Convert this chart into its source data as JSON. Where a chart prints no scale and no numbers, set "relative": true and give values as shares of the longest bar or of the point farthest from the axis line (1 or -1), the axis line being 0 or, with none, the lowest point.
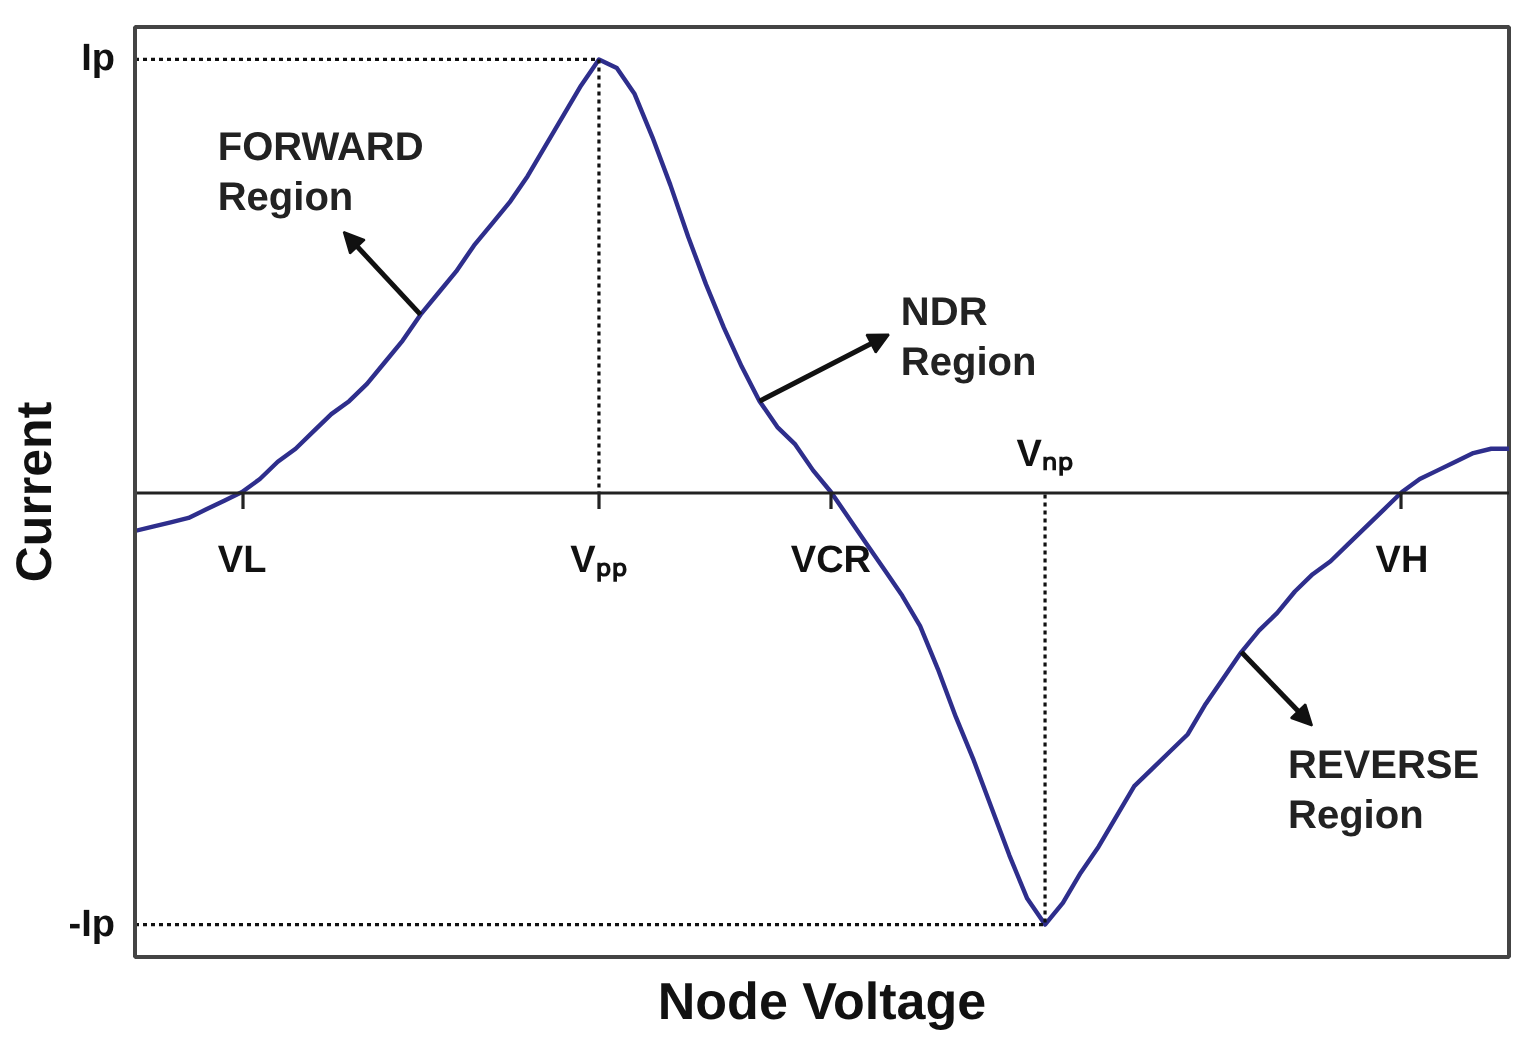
{
  "chart_data": {
    "type": "line",
    "relative": true,
    "xlabel": "Node Voltage",
    "ylabel": "Current",
    "categories": [
      null,
      null,
      null,
      null,
      null,
      null,
      "VL",
      null,
      null,
      null,
      null,
      null,
      null,
      null,
      null,
      null,
      null,
      null,
      null,
      null,
      null,
      null,
      null,
      null,
      null,
      null,
      "Vₚₚ",
      null,
      null,
      null,
      null,
      null,
      null,
      null,
      null,
      null,
      null,
      null,
      null,
      "VCR",
      null,
      null,
      null,
      null,
      null,
      null,
      null,
      null,
      null,
      null,
      null,
      "Vₙₚ",
      null,
      null,
      null,
      null,
      null,
      null,
      null,
      null,
      null,
      null,
      null,
      null,
      null,
      null,
      null,
      null,
      null,
      null,
      null,
      "VH",
      null,
      null,
      null,
      null,
      null,
      null
    ],
    "series": [
      {
        "color": "#2e2e8c",
        "values": [
          -0.09,
          -0.08,
          -0.07,
          -0.06,
          -0.04,
          -0.02,
          0,
          0.03,
          0.07,
          0.1,
          0.14,
          0.18,
          0.21,
          0.25,
          0.3,
          0.35,
          0.41,
          0.46,
          0.51,
          0.57,
          0.62,
          0.67,
          0.73,
          0.8,
          0.87,
          0.94,
          1,
          0.98,
          0.92,
          0.82,
          0.71,
          0.59,
          0.48,
          0.38,
          0.29,
          0.21,
          0.15,
          0.11,
          0.05,
          0,
          -0.06,
          -0.12,
          -0.18,
          -0.24,
          -0.31,
          -0.41,
          -0.52,
          -0.62,
          -0.73,
          -0.84,
          -0.94,
          -1,
          -0.95,
          -0.88,
          -0.82,
          -0.75,
          -0.68,
          -0.64,
          -0.6,
          -0.56,
          -0.49,
          -0.43,
          -0.37,
          -0.32,
          -0.28,
          -0.23,
          -0.19,
          -0.16,
          -0.12,
          -0.08,
          -0.04,
          0,
          0.03,
          0.05,
          0.07,
          0.09,
          0.1,
          0.1
        ]
      }
    ],
    "ref_lines": [
      {
        "axis": "y",
        "value": 1,
        "label": "Ip",
        "line_style": "dotted",
        "color": "#111111"
      },
      {
        "axis": "y",
        "value": -1,
        "label": "-Ip",
        "line_style": "dotted",
        "color": "#111111"
      }
    ],
    "annotations": [
      "FORWARD\nRegion",
      "NDR\nRegion",
      "REVERSE\nRegion"
    ]
  }
}
